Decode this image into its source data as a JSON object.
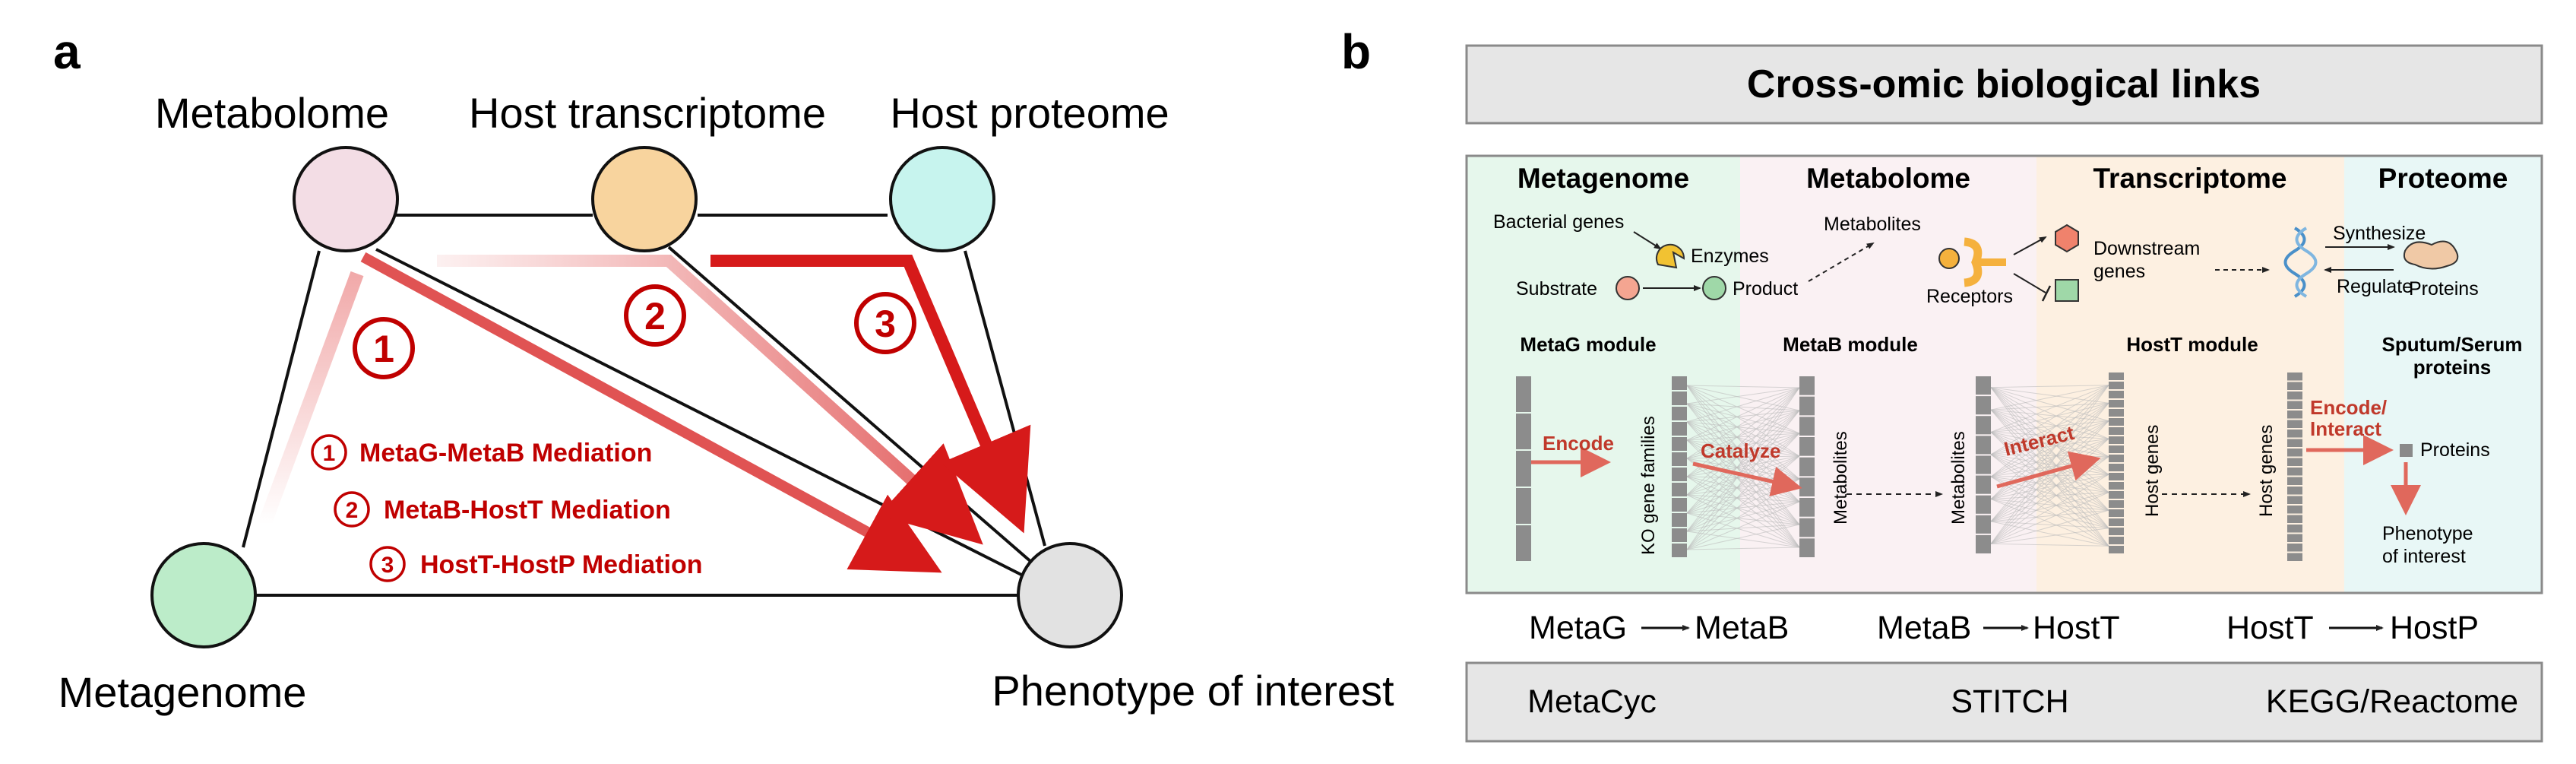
{
  "panel_a": {
    "label": "a",
    "nodes": {
      "metabolome": "Metabolome",
      "host_transcriptome": "Host transcriptome",
      "host_proteome": "Host proteome",
      "metagenome": "Metagenome",
      "phenotype": "Phenotype of interest"
    },
    "numbers": [
      "1",
      "2",
      "3"
    ],
    "mediations": [
      {
        "num": "1",
        "label": "MetaG-MetaB Mediation"
      },
      {
        "num": "2",
        "label": "MetaB-HostT Mediation"
      },
      {
        "num": "3",
        "label": "HostT-HostP Mediation"
      }
    ],
    "colors": {
      "metabolome": "#f3dde5",
      "host_transcriptome": "#f8d49e",
      "host_proteome": "#c7f4ee",
      "metagenome": "#bcecc9",
      "phenotype": "#e2e2e2",
      "mediation": "#d91c1c"
    }
  },
  "panel_b": {
    "label": "b",
    "title": "Cross-omic biological links",
    "columns": [
      "Metagenome",
      "Metabolome",
      "Transcriptome",
      "Proteome"
    ],
    "column_colors": [
      "#e6f7ec",
      "#faf1f3",
      "#fdf0e1",
      "#e8f7f6"
    ],
    "diagram": {
      "bacterial_genes": "Bacterial genes",
      "enzymes": "Enzymes",
      "substrate": "Substrate",
      "product": "Product",
      "metabolites": "Metabolites",
      "receptors": "Receptors",
      "downstream_genes": "Downstream\ngenes",
      "synthesize": "Synthesize",
      "regulate": "Regulate",
      "proteins": "Proteins"
    },
    "modules": {
      "metag": "MetaG module",
      "metab": "MetaB module",
      "hostt": "HostT module",
      "hostp": "Sputum/Serum\nproteins",
      "ko_gene_families": "KO gene families",
      "metabolites_1": "Metabolites",
      "metabolites_2": "Metabolites",
      "host_genes_1": "Host genes",
      "host_genes_2": "Host genes",
      "encode": "Encode",
      "catalyze": "Catalyze",
      "interact": "Interact",
      "encode_interact": "Encode/\nInteract",
      "proteins": "Proteins",
      "phenotype": "Phenotype\nof interest"
    },
    "links": [
      {
        "from": "MetaG",
        "to": "MetaB"
      },
      {
        "from": "MetaB",
        "to": "HostT"
      },
      {
        "from": "HostT",
        "to": "HostP"
      }
    ],
    "databases": [
      "MetaCyc",
      "STITCH",
      "KEGG/Reactome"
    ]
  }
}
